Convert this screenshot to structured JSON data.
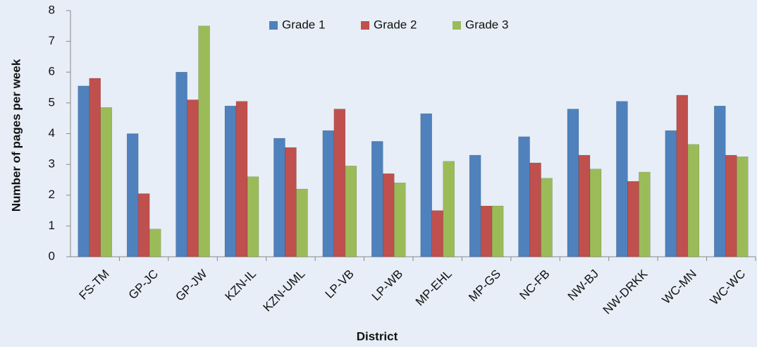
{
  "chart_data": {
    "type": "bar",
    "x_label": "District",
    "y_label": "Number of pages per week",
    "categories": [
      "FS-TM",
      "GP-JC",
      "GP-JW",
      "KZN-IL",
      "KZN-UML",
      "LP-VB",
      "LP-WB",
      "MP-EHL",
      "MP-GS",
      "NC-FB",
      "NW-BJ",
      "NW-DRKK",
      "WC-MN",
      "WC-WC"
    ],
    "series": [
      {
        "name": "Grade 1",
        "color": "#4f81bd",
        "values": [
          5.55,
          4.0,
          6.0,
          4.9,
          3.85,
          4.1,
          3.75,
          4.65,
          3.3,
          3.9,
          4.8,
          5.05,
          4.1,
          4.9
        ]
      },
      {
        "name": "Grade 2",
        "color": "#c0504d",
        "values": [
          5.8,
          2.05,
          5.1,
          5.05,
          3.55,
          4.8,
          2.7,
          1.5,
          1.65,
          3.05,
          3.3,
          2.45,
          5.25,
          3.3
        ]
      },
      {
        "name": "Grade 3",
        "color": "#9bbb59",
        "values": [
          4.85,
          0.9,
          7.5,
          2.6,
          2.2,
          2.95,
          2.4,
          3.1,
          1.65,
          2.55,
          2.85,
          2.75,
          3.65,
          3.25
        ]
      }
    ],
    "ylim": [
      0,
      8
    ],
    "yticks": [
      0,
      1,
      2,
      3,
      4,
      5,
      6,
      7,
      8
    ],
    "grid": false,
    "legend": "top"
  }
}
